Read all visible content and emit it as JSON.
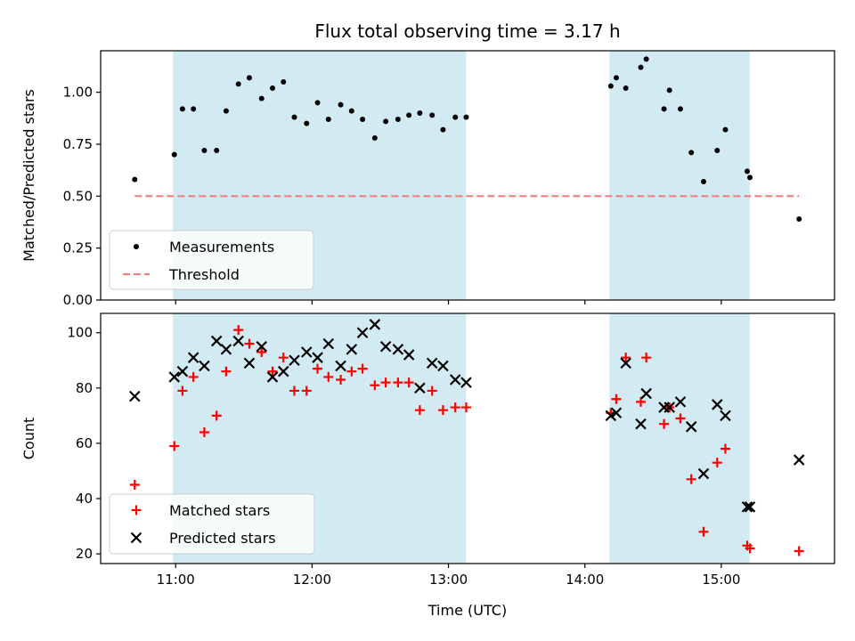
{
  "chart_data": {
    "title": "Flux total observing time = 3.17 h",
    "xlabel": "Time (UTC)",
    "xlim": [
      10.45,
      15.83
    ],
    "xticks": [
      {
        "value": 11,
        "label": "11:00"
      },
      {
        "value": 12,
        "label": "12:00"
      },
      {
        "value": 13,
        "label": "13:00"
      },
      {
        "value": 14,
        "label": "14:00"
      },
      {
        "value": 15,
        "label": "15:00"
      }
    ],
    "spans": [
      [
        10.98,
        13.13
      ],
      [
        14.18,
        15.21
      ]
    ],
    "span_color": "#add8e6",
    "panels": [
      {
        "type": "scatter",
        "ylabel": "Matched/Predicted stars",
        "ylim": [
          0,
          1.2
        ],
        "yticks": [
          {
            "value": 0,
            "label": "0.00"
          },
          {
            "value": 0.25,
            "label": "0.25"
          },
          {
            "value": 0.5,
            "label": "0.50"
          },
          {
            "value": 0.75,
            "label": "0.75"
          },
          {
            "value": 1.0,
            "label": "1.00"
          }
        ],
        "legend_position": "lower-left",
        "series": [
          {
            "name": "Measurements",
            "marker": "dot",
            "color": "#000000",
            "x": [
              10.7,
              10.99,
              11.05,
              11.13,
              11.21,
              11.3,
              11.37,
              11.46,
              11.54,
              11.63,
              11.71,
              11.79,
              11.87,
              11.96,
              12.04,
              12.12,
              12.21,
              12.29,
              12.37,
              12.46,
              12.54,
              12.63,
              12.71,
              12.79,
              12.88,
              12.96,
              13.05,
              13.13,
              14.19,
              14.23,
              14.3,
              14.41,
              14.45,
              14.58,
              14.62,
              14.7,
              14.78,
              14.87,
              14.97,
              15.03,
              15.19,
              15.21,
              15.57
            ],
            "y": [
              0.58,
              0.7,
              0.92,
              0.92,
              0.72,
              0.72,
              0.91,
              1.04,
              1.07,
              0.97,
              1.02,
              1.05,
              0.88,
              0.85,
              0.95,
              0.87,
              0.94,
              0.91,
              0.87,
              0.78,
              0.86,
              0.87,
              0.89,
              0.9,
              0.89,
              0.82,
              0.88,
              0.88,
              1.03,
              1.07,
              1.02,
              1.12,
              1.16,
              0.92,
              1.01,
              0.92,
              0.71,
              0.57,
              0.72,
              0.82,
              0.62,
              0.59,
              0.39
            ]
          },
          {
            "name": "Threshold",
            "marker": "dashed-line",
            "color": "#f08080",
            "x": [
              10.7,
              15.57
            ],
            "y": [
              0.5,
              0.5
            ]
          }
        ]
      },
      {
        "type": "scatter",
        "ylabel": "Count",
        "ylim": [
          16.5,
          107
        ],
        "yticks": [
          {
            "value": 20,
            "label": "20"
          },
          {
            "value": 40,
            "label": "40"
          },
          {
            "value": 60,
            "label": "60"
          },
          {
            "value": 80,
            "label": "80"
          },
          {
            "value": 100,
            "label": "100"
          }
        ],
        "legend_position": "lower-left",
        "series": [
          {
            "name": "Matched stars",
            "marker": "plus",
            "color": "#ff0000",
            "x": [
              10.7,
              10.99,
              11.05,
              11.13,
              11.21,
              11.3,
              11.37,
              11.46,
              11.54,
              11.63,
              11.71,
              11.79,
              11.87,
              11.96,
              12.04,
              12.12,
              12.21,
              12.29,
              12.37,
              12.46,
              12.54,
              12.63,
              12.71,
              12.79,
              12.88,
              12.96,
              13.05,
              13.13,
              14.19,
              14.23,
              14.3,
              14.41,
              14.45,
              14.58,
              14.62,
              14.7,
              14.78,
              14.87,
              14.97,
              15.03,
              15.19,
              15.21,
              15.57
            ],
            "y": [
              45,
              59,
              79,
              84,
              64,
              70,
              86,
              101,
              96,
              93,
              86,
              91,
              79,
              79,
              87,
              84,
              83,
              86,
              87,
              81,
              82,
              82,
              82,
              72,
              79,
              72,
              73,
              73,
              71,
              76,
              91,
              75,
              91,
              67,
              73,
              69,
              47,
              28,
              53,
              58,
              23,
              22,
              21
            ]
          },
          {
            "name": "Predicted stars",
            "marker": "x",
            "color": "#000000",
            "x": [
              10.7,
              10.99,
              11.05,
              11.13,
              11.21,
              11.3,
              11.37,
              11.46,
              11.54,
              11.63,
              11.71,
              11.79,
              11.87,
              11.96,
              12.04,
              12.12,
              12.21,
              12.29,
              12.37,
              12.46,
              12.54,
              12.63,
              12.71,
              12.79,
              12.88,
              12.96,
              13.05,
              13.13,
              14.19,
              14.23,
              14.3,
              14.41,
              14.45,
              14.58,
              14.62,
              14.7,
              14.78,
              14.87,
              14.97,
              15.03,
              15.19,
              15.21,
              15.57
            ],
            "y": [
              77,
              84,
              86,
              91,
              88,
              97,
              94,
              97,
              89,
              95,
              84,
              86,
              90,
              93,
              91,
              96,
              88,
              94,
              100,
              103,
              95,
              94,
              92,
              80,
              89,
              88,
              83,
              82,
              70,
              71,
              89,
              67,
              78,
              73,
              73,
              75,
              66,
              49,
              74,
              70,
              37,
              37,
              54
            ]
          }
        ]
      }
    ]
  }
}
